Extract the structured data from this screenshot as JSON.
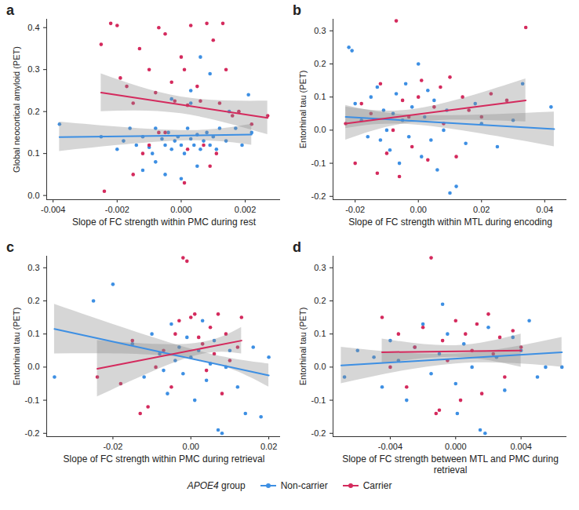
{
  "chart_data": [
    {
      "panel": "a",
      "type": "scatter",
      "x_label": "Slope of FC strength within PMC during rest",
      "y_label": "Global neocortical amyloid (PET)",
      "xlim": [
        -0.0042,
        0.0031
      ],
      "xticks": [
        -0.004,
        -0.002,
        {
          "value": 0,
          "label": "0.000"
        },
        0.002
      ],
      "ylim": [
        -0.01,
        0.42
      ],
      "yticks": [
        {
          "value": 0,
          "label": "0.0"
        },
        0.1,
        0.2,
        0.3,
        0.4
      ],
      "series": [
        {
          "name": "Non-carrier",
          "color": "#3d8fe3",
          "x": [
            -0.0038,
            -0.0025,
            -0.002,
            -0.0018,
            -0.0016,
            -0.0014,
            -0.0012,
            -0.001,
            -0.0009,
            -0.0008,
            -0.0006,
            -0.0005,
            -0.0004,
            -0.0003,
            -0.0002,
            -0.0001,
            0,
            0.0001,
            0.0002,
            0.0003,
            0.0004,
            0.0005,
            0.0006,
            0.0007,
            0.0008,
            0.0009,
            0.001,
            0.0011,
            0.0012,
            0.0014,
            0.0015,
            0.0017,
            0.0019,
            0.0021,
            0.0022,
            -0.0012,
            -0.0005,
            0,
            0.0005,
            -0.0008,
            0.0003,
            -0.0003,
            0.0006,
            0.0009,
            0.0003
          ],
          "values": [
            0.17,
            0.14,
            0.11,
            0.13,
            0.16,
            0.12,
            0.14,
            0.115,
            0.1,
            0.16,
            0.135,
            0.12,
            0.15,
            0.11,
            0.13,
            0.14,
            0.12,
            0.1,
            0.16,
            0.135,
            0.12,
            0.145,
            0.11,
            0.13,
            0.15,
            0.12,
            0.14,
            0.11,
            0.16,
            0.13,
            0.2,
            0.16,
            0.12,
            0.24,
            0.15,
            0.06,
            0.05,
            0.04,
            0.07,
            0.08,
            0.22,
            0.23,
            0.33,
            0.29,
            0.25
          ],
          "fit_x": [
            -0.0038,
            0.0022
          ],
          "fit_values": [
            0.139,
            0.145
          ],
          "ci_x": [
            -0.0038,
            0,
            0.0022
          ],
          "ci_lower": [
            0.105,
            0.13,
            0.12
          ],
          "ci_upper": [
            0.175,
            0.155,
            0.17
          ]
        },
        {
          "name": "Carrier",
          "color": "#d42a5d",
          "x": [
            -0.0025,
            -0.0022,
            -0.002,
            -0.0019,
            -0.0017,
            -0.0015,
            -0.0013,
            -0.001,
            -0.0008,
            -0.0007,
            -0.0005,
            -0.0003,
            -0.0002,
            0,
            0.0001,
            0.0002,
            0.0003,
            0.0005,
            0.0006,
            0.0008,
            0.001,
            0.0012,
            0.0013,
            0.0014,
            0.0016,
            0.0018,
            0.0022,
            0.0027,
            -0.0024,
            -0.001,
            -0.0005,
            0.0002,
            0.0007,
            -0.0012,
            0.0011,
            -0.0015,
            0.0001,
            0.0009,
            -0.0007
          ],
          "values": [
            0.36,
            0.41,
            0.405,
            0.28,
            0.26,
            0.22,
            0.35,
            0.3,
            0.245,
            0.4,
            0.385,
            0.27,
            0.225,
            0.33,
            0.3,
            0.215,
            0.405,
            0.26,
            0.225,
            0.41,
            0.37,
            0.22,
            0.41,
            0.3,
            0.19,
            0.2,
            0.17,
            0.19,
            0.01,
            0.12,
            0.15,
            0.11,
            0.12,
            0.1,
            0.1,
            0.05,
            0.03,
            0.07,
            0.15
          ],
          "fit_x": [
            -0.0025,
            0.0027
          ],
          "fit_values": [
            0.245,
            0.185
          ],
          "ci_x": [
            -0.0025,
            0,
            0.0027
          ],
          "ci_lower": [
            0.2,
            0.195,
            0.145
          ],
          "ci_upper": [
            0.29,
            0.235,
            0.225
          ]
        }
      ]
    },
    {
      "panel": "b",
      "type": "scatter",
      "x_label": "Slope of FC strength within MTL during encoding",
      "y_label": "Entorhinal tau (PET)",
      "legend": "bottom",
      "legend_title": "APOE4 group",
      "xlim": [
        -0.027,
        0.047
      ],
      "xticks": [
        -0.02,
        {
          "value": 0,
          "label": "0.00"
        },
        0.02,
        0.04
      ],
      "ylim": [
        -0.21,
        0.335
      ],
      "yticks": [
        -0.2,
        -0.1,
        {
          "value": 0,
          "label": "0.0"
        },
        0.1,
        0.2,
        0.3
      ],
      "series": [
        {
          "name": "Non-carrier",
          "color": "#3d8fe3",
          "x": [
            -0.022,
            -0.021,
            -0.02,
            -0.018,
            -0.016,
            -0.015,
            -0.013,
            -0.012,
            -0.011,
            -0.01,
            -0.009,
            -0.008,
            -0.007,
            -0.006,
            -0.005,
            -0.004,
            -0.003,
            -0.002,
            0,
            0.001,
            0.002,
            0.003,
            0.004,
            0.005,
            0.006,
            0.008,
            0.009,
            0.01,
            0.012,
            0.015,
            0.018,
            0.02,
            0.025,
            0.03,
            0.033,
            0.042
          ],
          "values": [
            0.25,
            0.24,
            0.08,
            0.03,
            -0.02,
            0.1,
            0.13,
            -0.03,
            0.06,
            0.0,
            -0.06,
            0.05,
            0.11,
            -0.1,
            0.03,
            0.14,
            -0.02,
            0.07,
            0.2,
            -0.08,
            0.04,
            0.12,
            -0.03,
            0.09,
            -0.12,
            0.0,
            0.06,
            -0.19,
            -0.17,
            -0.04,
            0.08,
            0.02,
            -0.05,
            0.03,
            0.14,
            0.07
          ],
          "fit_x": [
            -0.023,
            0.043
          ],
          "fit_values": [
            0.04,
            0.003
          ],
          "ci_x": [
            -0.023,
            0,
            0.043
          ],
          "ci_lower": [
            0.005,
            0.015,
            -0.05
          ],
          "ci_upper": [
            0.075,
            0.045,
            0.055
          ]
        },
        {
          "name": "Carrier",
          "color": "#d42a5d",
          "x": [
            -0.023,
            -0.02,
            -0.018,
            -0.015,
            -0.013,
            -0.012,
            -0.01,
            -0.008,
            -0.007,
            -0.006,
            -0.005,
            -0.003,
            -0.002,
            0,
            0.001,
            0.003,
            0.005,
            0.007,
            0.008,
            0.01,
            0.012,
            0.014,
            0.016,
            0.02,
            0.023,
            0.028,
            0.034
          ],
          "values": [
            0.02,
            -0.1,
            0.08,
            0.05,
            -0.13,
            0.14,
            -0.07,
            0.0,
            0.33,
            -0.14,
            0.09,
            0.04,
            -0.05,
            0.1,
            0.15,
            -0.09,
            0.07,
            0.13,
            0.02,
            0.16,
            -0.08,
            0.1,
            0.06,
            0.04,
            0.11,
            0.09,
            0.31
          ],
          "fit_x": [
            -0.023,
            0.034
          ],
          "fit_values": [
            0.02,
            0.09
          ],
          "ci_x": [
            -0.023,
            0,
            0.034
          ],
          "ci_lower": [
            -0.03,
            0.025,
            0.025
          ],
          "ci_upper": [
            0.07,
            0.065,
            0.155
          ]
        }
      ]
    },
    {
      "panel": "c",
      "type": "scatter",
      "x_label": "Slope of FC strength within PMC during retrieval",
      "y_label": "Entorhinal tau (PET)",
      "xlim": [
        -0.037,
        0.023
      ],
      "xticks": [
        -0.02,
        {
          "value": 0,
          "label": "0.00"
        },
        0.02
      ],
      "ylim": [
        -0.21,
        0.335
      ],
      "yticks": [
        -0.2,
        -0.1,
        {
          "value": 0,
          "label": "0.0"
        },
        0.1,
        0.2,
        0.3
      ],
      "series": [
        {
          "name": "Non-carrier",
          "color": "#3d8fe3",
          "x": [
            -0.035,
            -0.025,
            -0.02,
            -0.015,
            -0.012,
            -0.01,
            -0.008,
            -0.006,
            -0.005,
            -0.004,
            -0.003,
            -0.002,
            -0.001,
            0,
            0.001,
            0.002,
            0.003,
            0.004,
            0.005,
            0.006,
            0.007,
            0.008,
            0.009,
            0.01,
            0.012,
            0.014,
            0.016,
            0.018,
            0.02,
            -0.007
          ],
          "values": [
            -0.03,
            0.2,
            0.25,
            0.07,
            -0.03,
            0.1,
            0.04,
            -0.08,
            0.13,
            0.02,
            0.06,
            -0.02,
            0.09,
            0.03,
            -0.1,
            0.05,
            0.14,
            -0.04,
            0.01,
            0.08,
            -0.19,
            -0.2,
            0.0,
            0.05,
            -0.06,
            -0.14,
            0.06,
            -0.15,
            0.03,
            -0.01
          ],
          "fit_x": [
            -0.035,
            0.02
          ],
          "fit_values": [
            0.115,
            -0.025
          ],
          "ci_x": [
            -0.035,
            0,
            0.02
          ],
          "ci_lower": [
            0.04,
            0.025,
            -0.06
          ],
          "ci_upper": [
            0.19,
            0.055,
            0.01
          ]
        },
        {
          "name": "Carrier",
          "color": "#d42a5d",
          "x": [
            -0.024,
            -0.018,
            -0.015,
            -0.013,
            -0.011,
            -0.009,
            -0.007,
            -0.005,
            -0.004,
            -0.003,
            -0.002,
            -0.001,
            0,
            0.001,
            0.002,
            0.003,
            0.004,
            0.005,
            0.006,
            0.007,
            0.008,
            0.009,
            0.01,
            0.012,
            0.013
          ],
          "values": [
            -0.03,
            -0.05,
            0.08,
            -0.14,
            -0.12,
            0.0,
            0.05,
            -0.06,
            0.1,
            0.14,
            0.33,
            0.32,
            0.15,
            0.16,
            0.09,
            0.07,
            -0.01,
            0.12,
            0.04,
            0.16,
            -0.08,
            0.1,
            0.02,
            0.06,
            0.15
          ],
          "fit_x": [
            -0.024,
            0.013
          ],
          "fit_values": [
            -0.005,
            0.08
          ],
          "ci_x": [
            -0.024,
            0,
            0.013
          ],
          "ci_lower": [
            -0.09,
            0.03,
            0.04
          ],
          "ci_upper": [
            0.08,
            0.07,
            0.12
          ]
        }
      ]
    },
    {
      "panel": "d",
      "type": "scatter",
      "x_label": "Slope of FC strength between MTL and PMC during retrieval",
      "y_label": "Entorhinal tau (PET)",
      "xlim": [
        -0.0075,
        0.0068
      ],
      "xticks": [
        -0.004,
        {
          "value": 0,
          "label": "0.000"
        },
        0.004
      ],
      "ylim": [
        -0.21,
        0.335
      ],
      "yticks": [
        -0.2,
        -0.1,
        {
          "value": 0,
          "label": "0.0"
        },
        0.1,
        0.2,
        0.3
      ],
      "series": [
        {
          "name": "Non-carrier",
          "color": "#3d8fe3",
          "x": [
            -0.0068,
            -0.006,
            -0.005,
            -0.0045,
            -0.004,
            -0.0035,
            -0.003,
            -0.0025,
            -0.002,
            -0.0015,
            -0.001,
            -0.0005,
            0,
            0.0005,
            0.001,
            0.0015,
            0.0018,
            0.002,
            0.0025,
            0.003,
            0.0035,
            0.004,
            0.0045,
            0.005,
            0.0055,
            0.0065,
            0.0001,
            -0.0008
          ],
          "values": [
            -0.03,
            0.05,
            0.03,
            -0.06,
            0.08,
            0.02,
            -0.1,
            0.06,
            0.13,
            -0.02,
            0.04,
            0.1,
            -0.05,
            0.07,
            0.0,
            -0.19,
            -0.2,
            0.12,
            0.03,
            -0.07,
            0.09,
            0.05,
            0.14,
            -0.03,
            0.0,
            0.0,
            -0.14,
            0.19
          ],
          "fit_x": [
            -0.007,
            0.0065
          ],
          "fit_values": [
            0.005,
            0.045
          ],
          "ci_x": [
            -0.007,
            0,
            0.0065
          ],
          "ci_lower": [
            -0.05,
            0.01,
            0.0
          ],
          "ci_upper": [
            0.06,
            0.04,
            0.09
          ]
        },
        {
          "name": "Carrier",
          "color": "#d42a5d",
          "x": [
            -0.0045,
            -0.004,
            -0.0035,
            -0.003,
            -0.0025,
            -0.002,
            -0.0015,
            -0.001,
            -0.0008,
            -0.0005,
            0,
            0.0003,
            0.0006,
            0.001,
            0.0013,
            0.0016,
            0.002,
            0.0023,
            0.0027,
            0.003,
            0.0035,
            0.004,
            -0.0012
          ],
          "values": [
            0.15,
            0.0,
            0.1,
            -0.06,
            0.06,
            0.12,
            0.33,
            -0.13,
            0.08,
            0.02,
            0.14,
            -0.1,
            0.1,
            0.05,
            0.13,
            -0.08,
            0.16,
            0.04,
            0.09,
            -0.03,
            0.11,
            0.06,
            -0.14
          ],
          "fit_x": [
            -0.0045,
            0.004
          ],
          "fit_values": [
            0.045,
            0.05
          ],
          "ci_x": [
            -0.0045,
            0,
            0.004
          ],
          "ci_lower": [
            0.01,
            0.03,
            0.0
          ],
          "ci_upper": [
            0.085,
            0.065,
            0.1
          ]
        }
      ]
    }
  ]
}
